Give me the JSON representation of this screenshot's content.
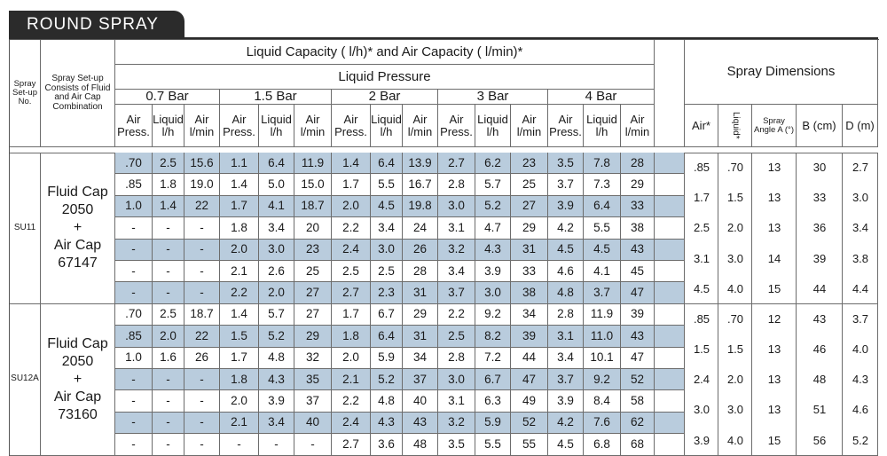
{
  "title": "ROUND SPRAY",
  "headers": {
    "spray_setup_no": "Spray Set-up No.",
    "spray_setup_consists": "Spray Set-up Consists of Fluid and Air Cap Combination",
    "capacity": "Liquid Capacity  ( l/h)* and Air Capacity ( l/min)*",
    "liquid_pressure": "Liquid Pressure",
    "pressures": [
      "0.7 Bar",
      "1.5 Bar",
      "2 Bar",
      "3 Bar",
      "4 Bar"
    ],
    "sub_air_press": "Air Press.",
    "sub_liquid": "Liquid l/h",
    "sub_air": "Air l/min",
    "spray_dimensions": "Spray Dimensions",
    "dim_air": "Air*",
    "dim_liquid": "Liquid*",
    "dim_angle": "Spray Angle A (°)",
    "dim_b": "B (cm)",
    "dim_d": "D (m)"
  },
  "setups": [
    {
      "id": "SU11",
      "fluid_cap_label": "Fluid Cap",
      "fluid_cap": "2050",
      "plus": "+",
      "air_cap_label": "Air Cap",
      "air_cap": "67147",
      "rows": [
        [
          ".70",
          "2.5",
          "15.6",
          "1.1",
          "6.4",
          "11.9",
          "1.4",
          "6.4",
          "13.9",
          "2.7",
          "6.2",
          "23",
          "3.5",
          "7.8",
          "28"
        ],
        [
          ".85",
          "1.8",
          "19.0",
          "1.4",
          "5.0",
          "15.0",
          "1.7",
          "5.5",
          "16.7",
          "2.8",
          "5.7",
          "25",
          "3.7",
          "7.3",
          "29"
        ],
        [
          "1.0",
          "1.4",
          "22",
          "1.7",
          "4.1",
          "18.7",
          "2.0",
          "4.5",
          "19.8",
          "3.0",
          "5.2",
          "27",
          "3.9",
          "6.4",
          "33"
        ],
        [
          "-",
          "-",
          "-",
          "1.8",
          "3.4",
          "20",
          "2.2",
          "3.4",
          "24",
          "3.1",
          "4.7",
          "29",
          "4.2",
          "5.5",
          "38"
        ],
        [
          "-",
          "-",
          "-",
          "2.0",
          "3.0",
          "23",
          "2.4",
          "3.0",
          "26",
          "3.2",
          "4.3",
          "31",
          "4.5",
          "4.5",
          "43"
        ],
        [
          "-",
          "-",
          "-",
          "2.1",
          "2.6",
          "25",
          "2.5",
          "2.5",
          "28",
          "3.4",
          "3.9",
          "33",
          "4.6",
          "4.1",
          "45"
        ],
        [
          "-",
          "-",
          "-",
          "2.2",
          "2.0",
          "27",
          "2.7",
          "2.3",
          "31",
          "3.7",
          "3.0",
          "38",
          "4.8",
          "3.7",
          "47"
        ]
      ],
      "dimensions": [
        [
          ".85",
          ".70",
          "13",
          "30",
          "2.7"
        ],
        [
          "1.7",
          "1.5",
          "13",
          "33",
          "3.0"
        ],
        [
          "2.5",
          "2.0",
          "13",
          "36",
          "3.4"
        ],
        [
          "3.1",
          "3.0",
          "14",
          "39",
          "3.8"
        ],
        [
          "4.5",
          "4.0",
          "15",
          "44",
          "4.4"
        ]
      ]
    },
    {
      "id": "SU12A",
      "fluid_cap_label": "Fluid Cap",
      "fluid_cap": "2050",
      "plus": "+",
      "air_cap_label": "Air Cap",
      "air_cap": "73160",
      "rows": [
        [
          ".70",
          "2.5",
          "18.7",
          "1.4",
          "5.7",
          "27",
          "1.7",
          "6.7",
          "29",
          "2.2",
          "9.2",
          "34",
          "2.8",
          "11.9",
          "39"
        ],
        [
          ".85",
          "2.0",
          "22",
          "1.5",
          "5.2",
          "29",
          "1.8",
          "6.4",
          "31",
          "2.5",
          "8.2",
          "39",
          "3.1",
          "11.0",
          "43"
        ],
        [
          "1.0",
          "1.6",
          "26",
          "1.7",
          "4.8",
          "32",
          "2.0",
          "5.9",
          "34",
          "2.8",
          "7.2",
          "44",
          "3.4",
          "10.1",
          "47"
        ],
        [
          "-",
          "-",
          "-",
          "1.8",
          "4.3",
          "35",
          "2.1",
          "5.2",
          "37",
          "3.0",
          "6.7",
          "47",
          "3.7",
          "9.2",
          "52"
        ],
        [
          "-",
          "-",
          "-",
          "2.0",
          "3.9",
          "37",
          "2.2",
          "4.8",
          "40",
          "3.1",
          "6.3",
          "49",
          "3.9",
          "8.4",
          "58"
        ],
        [
          "-",
          "-",
          "-",
          "2.1",
          "3.4",
          "40",
          "2.4",
          "4.3",
          "43",
          "3.2",
          "5.9",
          "52",
          "4.2",
          "7.6",
          "62"
        ],
        [
          "-",
          "-",
          "-",
          "-",
          "-",
          "-",
          "2.7",
          "3.6",
          "48",
          "3.5",
          "5.5",
          "55",
          "4.5",
          "6.8",
          "68"
        ]
      ],
      "dimensions": [
        [
          ".85",
          ".70",
          "12",
          "43",
          "3.7"
        ],
        [
          "1.5",
          "1.5",
          "13",
          "46",
          "4.0"
        ],
        [
          "2.4",
          "2.0",
          "13",
          "48",
          "4.3"
        ],
        [
          "3.0",
          "3.0",
          "13",
          "51",
          "4.6"
        ],
        [
          "3.9",
          "4.0",
          "15",
          "56",
          "5.2"
        ]
      ]
    }
  ],
  "colors": {
    "shade": "#b9ccdd",
    "title_bg": "#2b2b2b",
    "rule": "#6c6c6c"
  }
}
